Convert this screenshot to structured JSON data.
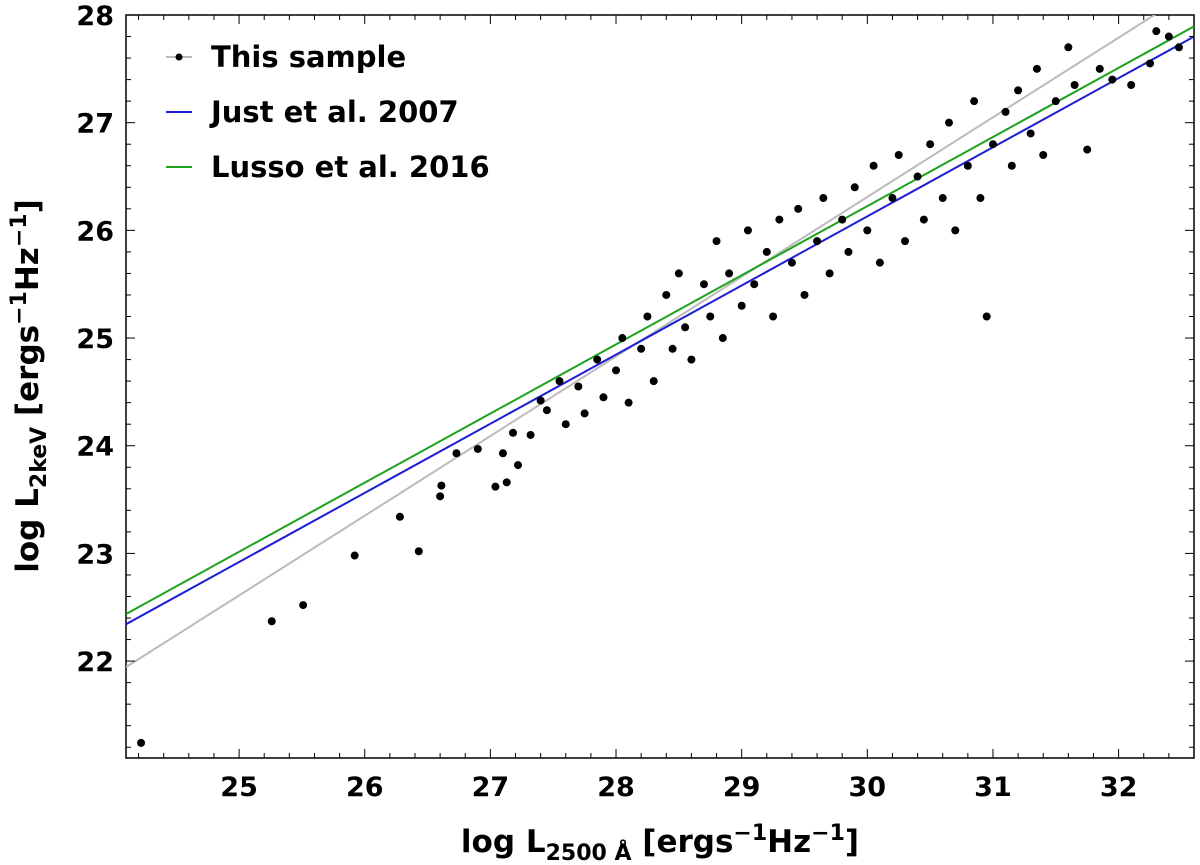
{
  "chart_data": {
    "type": "scatter",
    "title": "",
    "xlabel": {
      "prefix": "log L",
      "sub": "2500 Å",
      "units": " [ergs",
      "sup1": "−1",
      "mid": "Hz",
      "sup2": "−1",
      "close": "]"
    },
    "ylabel": {
      "prefix": "log L",
      "sub": "2keV",
      "units": " [ergs",
      "sup1": "−1",
      "mid": "Hz",
      "sup2": "−1",
      "close": "]"
    },
    "xlim": [
      24.1,
      32.6
    ],
    "ylim": [
      21.1,
      28.0
    ],
    "x_ticks": [
      "25",
      "26",
      "27",
      "28",
      "29",
      "30",
      "31",
      "32"
    ],
    "y_ticks": [
      "22",
      "23",
      "24",
      "25",
      "26",
      "27",
      "28"
    ],
    "grid": false,
    "legend_position": "top-left",
    "series": [
      {
        "name": "This sample",
        "kind": "scatter",
        "color": "#000000",
        "line_color": "#bbbbbb",
        "fit": {
          "slope": 0.74,
          "intercept": 4.11
        },
        "points": [
          [
            24.22,
            21.24
          ],
          [
            25.26,
            22.37
          ],
          [
            25.51,
            22.52
          ],
          [
            25.92,
            22.98
          ],
          [
            26.28,
            23.34
          ],
          [
            26.43,
            23.02
          ],
          [
            26.6,
            23.53
          ],
          [
            26.61,
            23.63
          ],
          [
            26.73,
            23.93
          ],
          [
            26.9,
            23.97
          ],
          [
            27.04,
            23.62
          ],
          [
            27.1,
            23.93
          ],
          [
            27.13,
            23.66
          ],
          [
            27.18,
            24.12
          ],
          [
            27.22,
            23.82
          ],
          [
            27.32,
            24.1
          ],
          [
            27.4,
            24.42
          ],
          [
            27.45,
            24.33
          ],
          [
            27.55,
            24.6
          ],
          [
            27.6,
            24.2
          ],
          [
            27.7,
            24.55
          ],
          [
            27.75,
            24.3
          ],
          [
            27.85,
            24.8
          ],
          [
            27.9,
            24.45
          ],
          [
            28.0,
            24.7
          ],
          [
            28.05,
            25.0
          ],
          [
            28.1,
            24.4
          ],
          [
            28.2,
            24.9
          ],
          [
            28.25,
            25.2
          ],
          [
            28.3,
            24.6
          ],
          [
            28.4,
            25.4
          ],
          [
            28.45,
            24.9
          ],
          [
            28.5,
            25.6
          ],
          [
            28.55,
            25.1
          ],
          [
            28.6,
            24.8
          ],
          [
            28.7,
            25.5
          ],
          [
            28.75,
            25.2
          ],
          [
            28.8,
            25.9
          ],
          [
            28.85,
            25.0
          ],
          [
            28.9,
            25.6
          ],
          [
            29.0,
            25.3
          ],
          [
            29.05,
            26.0
          ],
          [
            29.1,
            25.5
          ],
          [
            29.2,
            25.8
          ],
          [
            29.25,
            25.2
          ],
          [
            29.3,
            26.1
          ],
          [
            29.4,
            25.7
          ],
          [
            29.45,
            26.2
          ],
          [
            29.5,
            25.4
          ],
          [
            29.6,
            25.9
          ],
          [
            29.65,
            26.3
          ],
          [
            29.7,
            25.6
          ],
          [
            29.8,
            26.1
          ],
          [
            29.85,
            25.8
          ],
          [
            29.9,
            26.4
          ],
          [
            30.0,
            26.0
          ],
          [
            30.05,
            26.6
          ],
          [
            30.1,
            25.7
          ],
          [
            30.2,
            26.3
          ],
          [
            30.25,
            26.7
          ],
          [
            30.3,
            25.9
          ],
          [
            30.4,
            26.5
          ],
          [
            30.45,
            26.1
          ],
          [
            30.5,
            26.8
          ],
          [
            30.6,
            26.3
          ],
          [
            30.65,
            27.0
          ],
          [
            30.7,
            26.0
          ],
          [
            30.8,
            26.6
          ],
          [
            30.85,
            27.2
          ],
          [
            30.9,
            26.3
          ],
          [
            30.95,
            25.2
          ],
          [
            31.0,
            26.8
          ],
          [
            31.1,
            27.1
          ],
          [
            31.15,
            26.6
          ],
          [
            31.2,
            27.3
          ],
          [
            31.3,
            26.9
          ],
          [
            31.35,
            27.5
          ],
          [
            31.4,
            26.7
          ],
          [
            31.5,
            27.2
          ],
          [
            31.6,
            27.7
          ],
          [
            31.65,
            27.35
          ],
          [
            31.75,
            26.75
          ],
          [
            31.85,
            27.5
          ],
          [
            31.95,
            27.4
          ],
          [
            32.1,
            27.35
          ],
          [
            32.25,
            27.55
          ],
          [
            32.3,
            27.85
          ],
          [
            32.4,
            27.8
          ],
          [
            32.48,
            27.7
          ]
        ]
      },
      {
        "name": "Just et al. 2007",
        "kind": "line",
        "color": "#1d1dd6",
        "slope": 0.642,
        "intercept": 6.87
      },
      {
        "name": "Lusso et al. 2016",
        "kind": "line",
        "color": "#1aa31a",
        "slope": 0.642,
        "intercept": 6.965
      }
    ]
  }
}
